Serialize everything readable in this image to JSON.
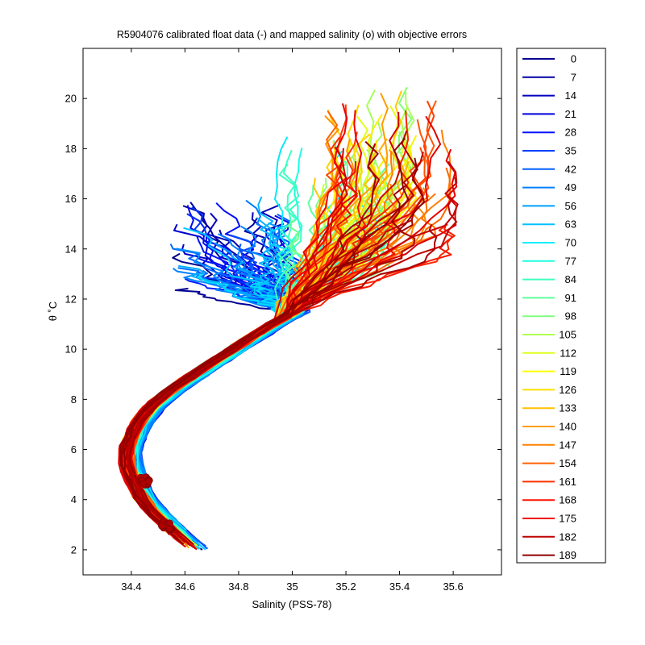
{
  "chart_data": {
    "type": "line",
    "title": "R5904076 calibrated float data (-) and mapped salinity (o) with objective errors",
    "xlabel": "Salinity (PSS-78)",
    "ylabel": "θ ˚C",
    "xlim": [
      34.22,
      35.78
    ],
    "ylim": [
      1,
      22
    ],
    "xticks": [
      34.4,
      34.6,
      34.8,
      35,
      35.2,
      35.4,
      35.6
    ],
    "yticks": [
      2,
      4,
      6,
      8,
      10,
      12,
      14,
      16,
      18,
      20
    ],
    "xtick_labels": [
      "34.4",
      "34.6",
      "34.8",
      "35",
      "35.2",
      "35.4",
      "35.6"
    ],
    "ytick_labels": [
      "2",
      "4",
      "6",
      "8",
      "10",
      "12",
      "14",
      "16",
      "18",
      "20"
    ],
    "grid": false,
    "legend_position": "outside-right",
    "colormap": [
      "#00008f",
      "#0000bf",
      "#0000ef",
      "#0020ff",
      "#0050ff",
      "#0080ff",
      "#00b0ff",
      "#00e0ff",
      "#20ffdf",
      "#50ffaf",
      "#80ff80",
      "#afff50",
      "#dfff20",
      "#ffef00",
      "#ffbf00",
      "#ff8f00",
      "#ff6000",
      "#ff3000",
      "#ef0000",
      "#bf0000",
      "#8f0000"
    ],
    "series": [
      {
        "name": "0",
        "color": "#00008f"
      },
      {
        "name": "7",
        "color": "#00009f"
      },
      {
        "name": "14",
        "color": "#0000bf"
      },
      {
        "name": "21",
        "color": "#0000df"
      },
      {
        "name": "28",
        "color": "#0010ff"
      },
      {
        "name": "35",
        "color": "#0040ff"
      },
      {
        "name": "42",
        "color": "#0060ff"
      },
      {
        "name": "49",
        "color": "#0080ff"
      },
      {
        "name": "56",
        "color": "#00a0ff"
      },
      {
        "name": "63",
        "color": "#00c0ff"
      },
      {
        "name": "70",
        "color": "#00efff"
      },
      {
        "name": "77",
        "color": "#20ffdf"
      },
      {
        "name": "84",
        "color": "#40ffbf"
      },
      {
        "name": "91",
        "color": "#60ff9f"
      },
      {
        "name": "98",
        "color": "#80ff80"
      },
      {
        "name": "105",
        "color": "#afff50"
      },
      {
        "name": "112",
        "color": "#dfff20"
      },
      {
        "name": "119",
        "color": "#ffff00"
      },
      {
        "name": "126",
        "color": "#ffdf00"
      },
      {
        "name": "133",
        "color": "#ffbf00"
      },
      {
        "name": "140",
        "color": "#ff9f00"
      },
      {
        "name": "147",
        "color": "#ff8000"
      },
      {
        "name": "154",
        "color": "#ff6000"
      },
      {
        "name": "161",
        "color": "#ff3000"
      },
      {
        "name": "168",
        "color": "#ff1000"
      },
      {
        "name": "175",
        "color": "#ef0000"
      },
      {
        "name": "182",
        "color": "#bf0000"
      },
      {
        "name": "189",
        "color": "#8f0000"
      }
    ],
    "profile_count": 190,
    "shape": {
      "deep_path": [
        [
          34.65,
          2.0
        ],
        [
          34.6,
          2.4
        ],
        [
          34.55,
          2.9
        ],
        [
          34.5,
          3.4
        ],
        [
          34.45,
          4.0
        ],
        [
          34.42,
          4.6
        ],
        [
          34.4,
          5.2
        ],
        [
          34.39,
          5.7
        ],
        [
          34.4,
          6.3
        ],
        [
          34.43,
          7.0
        ],
        [
          34.48,
          7.7
        ],
        [
          34.56,
          8.4
        ],
        [
          34.66,
          9.1
        ],
        [
          34.76,
          9.8
        ],
        [
          34.86,
          10.5
        ],
        [
          34.95,
          11.1
        ],
        [
          35.04,
          11.6
        ],
        [
          35.12,
          12.2
        ],
        [
          35.2,
          12.9
        ],
        [
          35.27,
          13.6
        ],
        [
          35.32,
          14.3
        ]
      ],
      "mapped_clusters": [
        {
          "s": 34.45,
          "t": 4.75
        },
        {
          "s": 34.53,
          "t": 2.95
        }
      ]
    }
  }
}
